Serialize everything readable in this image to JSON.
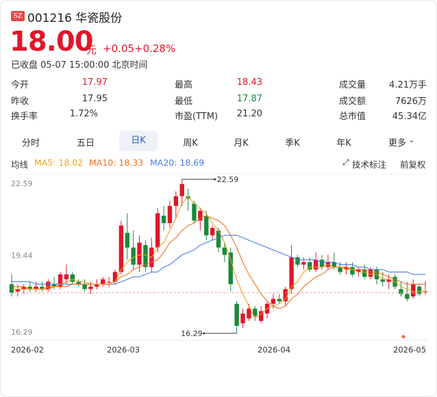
{
  "stock": {
    "market_badge": "SZ",
    "code_name": "001216 华瓷股份",
    "price": "18.00",
    "price_unit": "元",
    "change": "+0.05",
    "change_pct": "+0.28%",
    "status": "已收盘 05-07 15:00:00 北京时间"
  },
  "quote": {
    "open_label": "今开",
    "open_value": "17.97",
    "high_label": "最高",
    "high_value": "18.43",
    "volume_label": "成交量",
    "volume_value": "4.21万手",
    "prev_close_label": "昨收",
    "prev_close_value": "17.95",
    "low_label": "最低",
    "low_value": "17.87",
    "turnover_label": "成交额",
    "turnover_value": "7626万",
    "turnover_rate_label": "换手率",
    "turnover_rate_value": "1.72%",
    "pe_label": "市盈(TTM)",
    "pe_value": "21.20",
    "market_cap_label": "总市值",
    "market_cap_value": "45.34亿"
  },
  "tabs": [
    {
      "label": "分时"
    },
    {
      "label": "五日"
    },
    {
      "label": "日K"
    },
    {
      "label": "周K"
    },
    {
      "label": "月K"
    },
    {
      "label": "季K"
    },
    {
      "label": "年K"
    },
    {
      "label": "更多"
    }
  ],
  "indicators": {
    "ma_label": "均线",
    "ma5": "MA5: 18.02",
    "ma10": "MA10: 18.33",
    "ma20": "MA20: 18.69",
    "tech_label": "技术标注",
    "adjust_label": "前复权"
  },
  "colors": {
    "up": "#e0162b",
    "down": "#1a8a3a",
    "ma5": "#f0a020",
    "ma10": "#f07020",
    "ma20": "#4a7ae0"
  },
  "chart_data": {
    "type": "candlestick",
    "y_ticks": [
      "22.59",
      "19.44",
      "16.29"
    ],
    "x_ticks": [
      "2026-02",
      "2026-03",
      "2026-04",
      "2026-05"
    ],
    "ylim": [
      16.29,
      22.59
    ],
    "max_label": "22.59",
    "min_label": "16.29",
    "ref_price": 17.95,
    "candles": [
      {
        "o": 18.3,
        "h": 18.7,
        "l": 17.8,
        "c": 17.95
      },
      {
        "o": 18.0,
        "h": 18.3,
        "l": 17.8,
        "c": 18.1
      },
      {
        "o": 18.1,
        "h": 18.3,
        "l": 17.9,
        "c": 18.2
      },
      {
        "o": 18.2,
        "h": 18.4,
        "l": 18.0,
        "c": 18.1
      },
      {
        "o": 18.1,
        "h": 18.4,
        "l": 18.0,
        "c": 18.2
      },
      {
        "o": 18.2,
        "h": 18.4,
        "l": 18.0,
        "c": 18.1
      },
      {
        "o": 18.1,
        "h": 18.5,
        "l": 18.0,
        "c": 18.4
      },
      {
        "o": 18.3,
        "h": 18.6,
        "l": 18.1,
        "c": 18.2
      },
      {
        "o": 18.2,
        "h": 18.8,
        "l": 18.1,
        "c": 18.7
      },
      {
        "o": 18.5,
        "h": 19.1,
        "l": 18.3,
        "c": 18.7
      },
      {
        "o": 18.7,
        "h": 18.8,
        "l": 18.3,
        "c": 18.4
      },
      {
        "o": 18.4,
        "h": 18.5,
        "l": 18.2,
        "c": 18.3
      },
      {
        "o": 18.3,
        "h": 18.5,
        "l": 18.0,
        "c": 18.1
      },
      {
        "o": 18.1,
        "h": 18.4,
        "l": 17.9,
        "c": 18.2
      },
      {
        "o": 18.2,
        "h": 18.5,
        "l": 18.1,
        "c": 18.3
      },
      {
        "o": 18.3,
        "h": 18.6,
        "l": 18.2,
        "c": 18.5
      },
      {
        "o": 18.4,
        "h": 18.6,
        "l": 18.2,
        "c": 18.4
      },
      {
        "o": 18.4,
        "h": 18.9,
        "l": 18.3,
        "c": 18.8
      },
      {
        "o": 18.8,
        "h": 20.9,
        "l": 18.7,
        "c": 20.7
      },
      {
        "o": 20.4,
        "h": 21.2,
        "l": 19.3,
        "c": 19.8
      },
      {
        "o": 19.8,
        "h": 20.5,
        "l": 18.9,
        "c": 19.1
      },
      {
        "o": 19.1,
        "h": 20.3,
        "l": 18.8,
        "c": 20.0
      },
      {
        "o": 19.9,
        "h": 20.1,
        "l": 18.8,
        "c": 19.0
      },
      {
        "o": 19.0,
        "h": 20.2,
        "l": 18.8,
        "c": 19.8
      },
      {
        "o": 19.8,
        "h": 21.4,
        "l": 19.6,
        "c": 21.2
      },
      {
        "o": 21.1,
        "h": 21.5,
        "l": 20.5,
        "c": 20.8
      },
      {
        "o": 20.8,
        "h": 21.7,
        "l": 20.6,
        "c": 21.5
      },
      {
        "o": 21.5,
        "h": 22.1,
        "l": 21.0,
        "c": 21.9
      },
      {
        "o": 21.9,
        "h": 22.59,
        "l": 21.5,
        "c": 22.4
      },
      {
        "o": 21.9,
        "h": 22.2,
        "l": 21.3,
        "c": 21.8
      },
      {
        "o": 21.6,
        "h": 21.7,
        "l": 20.8,
        "c": 20.9
      },
      {
        "o": 20.9,
        "h": 21.4,
        "l": 20.5,
        "c": 21.3
      },
      {
        "o": 21.1,
        "h": 21.3,
        "l": 20.1,
        "c": 20.3
      },
      {
        "o": 20.3,
        "h": 20.7,
        "l": 20.1,
        "c": 20.6
      },
      {
        "o": 20.5,
        "h": 20.6,
        "l": 19.6,
        "c": 19.8
      },
      {
        "o": 19.8,
        "h": 20.0,
        "l": 19.2,
        "c": 19.5
      },
      {
        "o": 19.6,
        "h": 19.8,
        "l": 18.0,
        "c": 18.3
      },
      {
        "o": 17.5,
        "h": 17.6,
        "l": 16.29,
        "c": 16.6
      },
      {
        "o": 16.7,
        "h": 17.3,
        "l": 16.5,
        "c": 17.1
      },
      {
        "o": 16.9,
        "h": 17.5,
        "l": 16.8,
        "c": 17.3
      },
      {
        "o": 17.3,
        "h": 17.4,
        "l": 16.8,
        "c": 17.0
      },
      {
        "o": 16.8,
        "h": 17.4,
        "l": 16.7,
        "c": 17.2
      },
      {
        "o": 17.1,
        "h": 17.6,
        "l": 16.9,
        "c": 17.5
      },
      {
        "o": 17.5,
        "h": 17.9,
        "l": 17.3,
        "c": 17.7
      },
      {
        "o": 17.7,
        "h": 17.9,
        "l": 17.5,
        "c": 17.6
      },
      {
        "o": 17.6,
        "h": 18.2,
        "l": 17.4,
        "c": 18.1
      },
      {
        "o": 18.1,
        "h": 19.9,
        "l": 17.9,
        "c": 19.4
      },
      {
        "o": 19.4,
        "h": 19.5,
        "l": 19.0,
        "c": 19.1
      },
      {
        "o": 19.1,
        "h": 19.4,
        "l": 18.9,
        "c": 19.2
      },
      {
        "o": 19.2,
        "h": 19.4,
        "l": 18.8,
        "c": 18.9
      },
      {
        "o": 18.9,
        "h": 19.6,
        "l": 18.8,
        "c": 19.3
      },
      {
        "o": 19.3,
        "h": 19.5,
        "l": 18.9,
        "c": 19.0
      },
      {
        "o": 19.0,
        "h": 19.5,
        "l": 18.9,
        "c": 19.2
      },
      {
        "o": 19.2,
        "h": 19.6,
        "l": 18.9,
        "c": 19.0
      },
      {
        "o": 19.0,
        "h": 19.2,
        "l": 18.7,
        "c": 18.8
      },
      {
        "o": 18.9,
        "h": 19.2,
        "l": 18.7,
        "c": 19.0
      },
      {
        "o": 19.0,
        "h": 19.2,
        "l": 18.6,
        "c": 18.7
      },
      {
        "o": 18.8,
        "h": 19.0,
        "l": 18.6,
        "c": 18.9
      },
      {
        "o": 18.9,
        "h": 19.1,
        "l": 18.5,
        "c": 18.6
      },
      {
        "o": 18.6,
        "h": 19.0,
        "l": 18.5,
        "c": 18.9
      },
      {
        "o": 18.9,
        "h": 19.0,
        "l": 18.3,
        "c": 18.5
      },
      {
        "o": 18.5,
        "h": 18.8,
        "l": 18.2,
        "c": 18.4
      },
      {
        "o": 18.4,
        "h": 18.7,
        "l": 18.1,
        "c": 18.5
      },
      {
        "o": 18.6,
        "h": 18.7,
        "l": 18.1,
        "c": 18.2
      },
      {
        "o": 18.1,
        "h": 18.4,
        "l": 17.8,
        "c": 17.9
      },
      {
        "o": 17.9,
        "h": 18.4,
        "l": 17.6,
        "c": 17.7
      },
      {
        "o": 17.8,
        "h": 18.5,
        "l": 17.7,
        "c": 18.3
      },
      {
        "o": 18.2,
        "h": 18.3,
        "l": 17.8,
        "c": 17.9
      },
      {
        "o": 17.97,
        "h": 18.43,
        "l": 17.87,
        "c": 18.0
      }
    ],
    "ma5": [
      18.1,
      18.1,
      18.1,
      18.1,
      18.1,
      18.1,
      18.2,
      18.2,
      18.3,
      18.4,
      18.5,
      18.4,
      18.4,
      18.3,
      18.3,
      18.3,
      18.3,
      18.4,
      18.9,
      19.2,
      19.4,
      19.5,
      19.5,
      19.4,
      19.8,
      20.0,
      20.5,
      21.0,
      21.6,
      21.9,
      21.6,
      21.4,
      21.2,
      20.8,
      20.5,
      20.0,
      19.3,
      18.5,
      17.9,
      17.4,
      16.9,
      17.1,
      17.3,
      17.4,
      17.5,
      17.7,
      18.2,
      18.4,
      18.8,
      19.0,
      19.0,
      19.0,
      19.1,
      19.0,
      19.0,
      18.9,
      18.9,
      18.8,
      18.8,
      18.7,
      18.7,
      18.5,
      18.5,
      18.4,
      18.2,
      18.1,
      18.0,
      18.0,
      18.0
    ],
    "ma10": [
      18.2,
      18.2,
      18.2,
      18.1,
      18.1,
      18.1,
      18.1,
      18.2,
      18.2,
      18.2,
      18.3,
      18.3,
      18.3,
      18.3,
      18.3,
      18.3,
      18.3,
      18.4,
      18.6,
      18.7,
      18.9,
      19.0,
      19.1,
      19.2,
      19.3,
      19.6,
      20.0,
      20.2,
      20.5,
      20.7,
      20.8,
      21.0,
      21.1,
      21.0,
      20.9,
      20.7,
      20.3,
      19.8,
      19.2,
      18.7,
      18.3,
      17.9,
      17.6,
      17.4,
      17.3,
      17.4,
      17.7,
      17.9,
      18.2,
      18.4,
      18.6,
      18.7,
      18.9,
      19.0,
      19.0,
      19.0,
      18.9,
      18.9,
      18.9,
      18.8,
      18.8,
      18.7,
      18.6,
      18.5,
      18.4,
      18.3,
      18.3,
      18.3,
      18.3
    ],
    "ma20": [
      18.4,
      18.4,
      18.4,
      18.4,
      18.3,
      18.3,
      18.3,
      18.3,
      18.3,
      18.3,
      18.3,
      18.3,
      18.3,
      18.3,
      18.3,
      18.3,
      18.3,
      18.3,
      18.4,
      18.5,
      18.6,
      18.6,
      18.7,
      18.8,
      18.8,
      19.0,
      19.1,
      19.3,
      19.5,
      19.6,
      19.7,
      19.9,
      20.0,
      20.1,
      20.2,
      20.3,
      20.3,
      20.3,
      20.2,
      20.1,
      20.0,
      19.9,
      19.8,
      19.7,
      19.6,
      19.5,
      19.4,
      19.3,
      19.3,
      19.3,
      19.3,
      19.2,
      19.2,
      19.2,
      19.1,
      19.1,
      19.1,
      19.0,
      19.0,
      18.9,
      18.9,
      18.9,
      18.8,
      18.8,
      18.8,
      18.8,
      18.7,
      18.7,
      18.7
    ]
  }
}
